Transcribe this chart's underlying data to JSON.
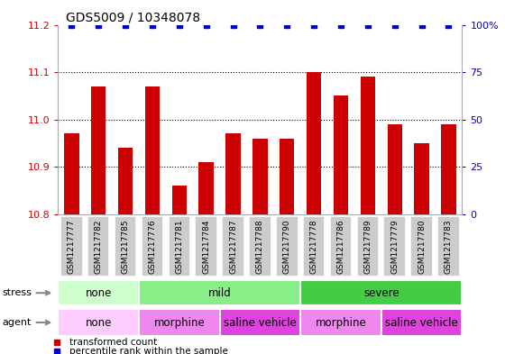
{
  "title": "GDS5009 / 10348078",
  "samples": [
    "GSM1217777",
    "GSM1217782",
    "GSM1217785",
    "GSM1217776",
    "GSM1217781",
    "GSM1217784",
    "GSM1217787",
    "GSM1217788",
    "GSM1217790",
    "GSM1217778",
    "GSM1217786",
    "GSM1217789",
    "GSM1217779",
    "GSM1217780",
    "GSM1217783"
  ],
  "transformed_counts": [
    10.97,
    11.07,
    10.94,
    11.07,
    10.86,
    10.91,
    10.97,
    10.96,
    10.96,
    11.1,
    11.05,
    11.09,
    10.99,
    10.95,
    10.99
  ],
  "percentile_ranks": [
    100,
    100,
    100,
    100,
    100,
    100,
    100,
    100,
    100,
    100,
    100,
    100,
    100,
    100,
    100
  ],
  "ylim_left": [
    10.8,
    11.2
  ],
  "ylim_right": [
    0,
    100
  ],
  "yticks_left": [
    10.8,
    10.9,
    11.0,
    11.1,
    11.2
  ],
  "yticks_right": [
    0,
    25,
    50,
    75,
    100
  ],
  "bar_color": "#cc0000",
  "dot_color": "#0000cc",
  "stress_groups": [
    {
      "label": "none",
      "start": 0,
      "end": 3,
      "color": "#ccffcc"
    },
    {
      "label": "mild",
      "start": 3,
      "end": 9,
      "color": "#88ee88"
    },
    {
      "label": "severe",
      "start": 9,
      "end": 15,
      "color": "#44cc44"
    }
  ],
  "agent_groups": [
    {
      "label": "none",
      "start": 0,
      "end": 3,
      "color": "#ffccff"
    },
    {
      "label": "morphine",
      "start": 3,
      "end": 6,
      "color": "#ee88ee"
    },
    {
      "label": "saline vehicle",
      "start": 6,
      "end": 9,
      "color": "#dd44dd"
    },
    {
      "label": "morphine",
      "start": 9,
      "end": 12,
      "color": "#ee88ee"
    },
    {
      "label": "saline vehicle",
      "start": 12,
      "end": 15,
      "color": "#dd44dd"
    }
  ],
  "stress_label": "stress",
  "agent_label": "agent",
  "legend_red": "transformed count",
  "legend_blue": "percentile rank within the sample",
  "tick_label_color_left": "#cc0000",
  "tick_label_color_right": "#0000cc",
  "bg_color": "#ffffff",
  "xticklabel_bg": "#cccccc"
}
